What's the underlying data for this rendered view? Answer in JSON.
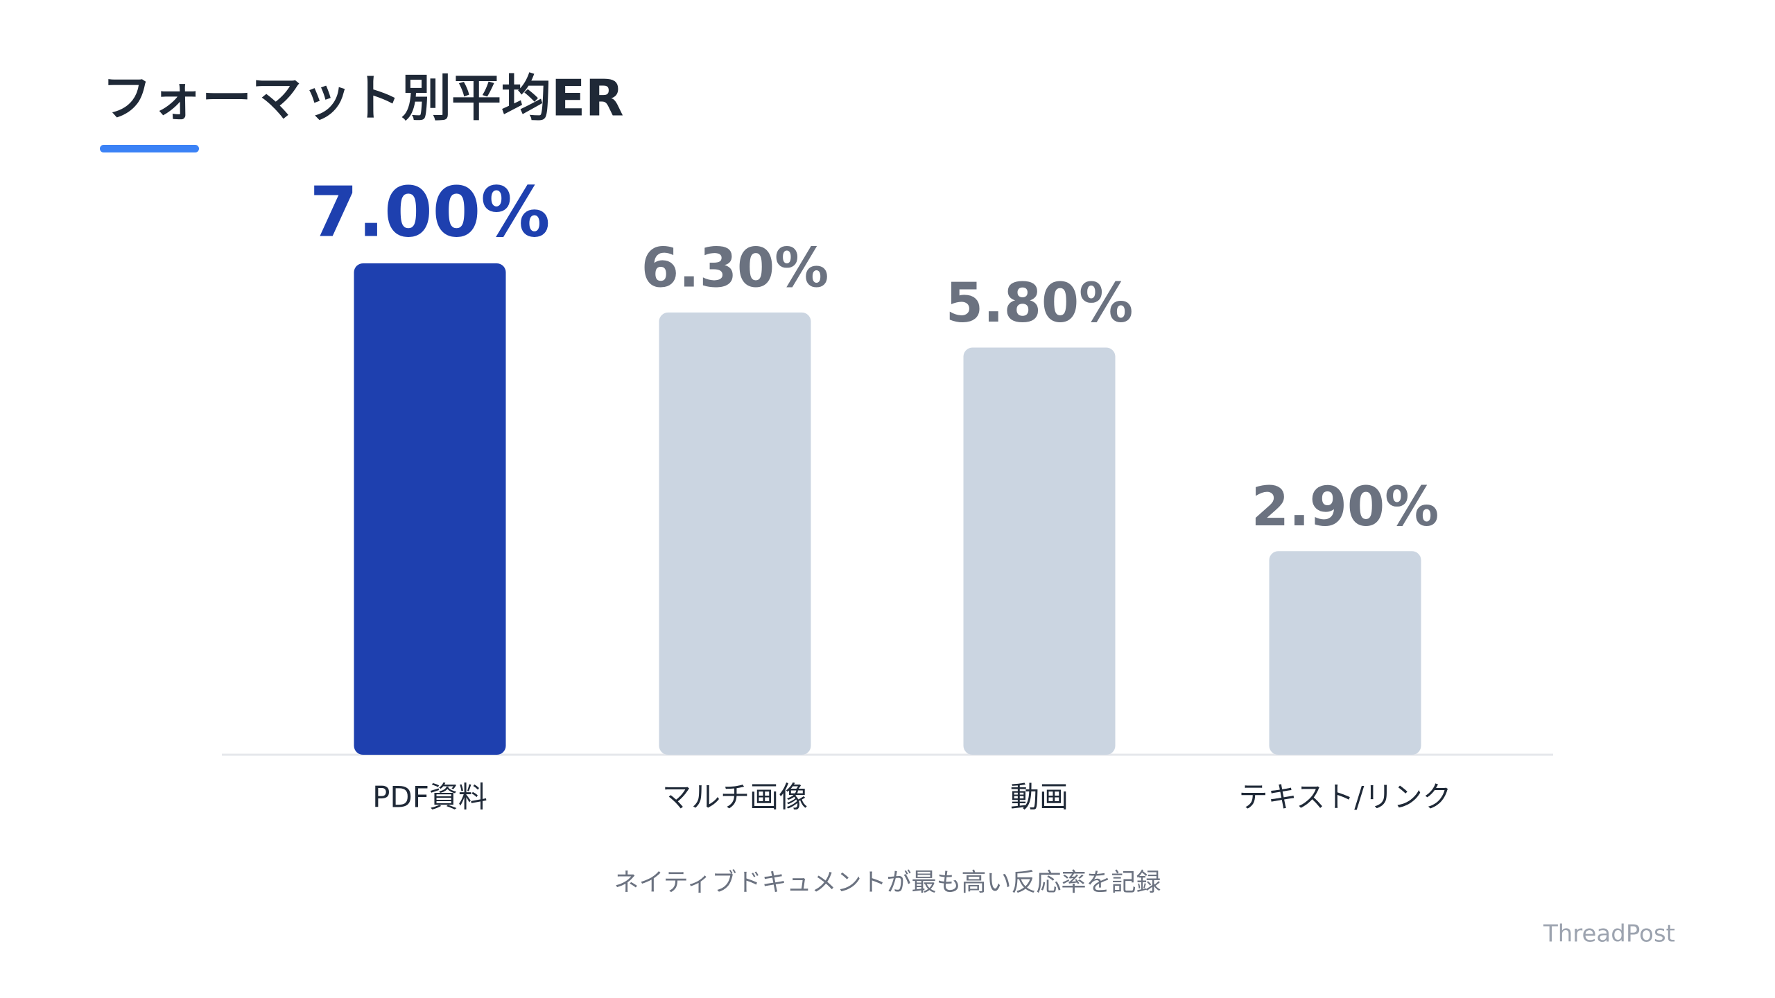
{
  "chart_data": {
    "type": "bar",
    "title": "フォーマット別平均ER",
    "categories": [
      "PDF資料",
      "マルチ画像",
      "動画",
      "テキスト/リンク"
    ],
    "values": [
      7.0,
      6.3,
      5.8,
      2.9
    ],
    "value_labels": [
      "7.00%",
      "6.30%",
      "5.80%",
      "2.90%"
    ],
    "colors": [
      "#1e40af",
      "#cbd5e1",
      "#cbd5e1",
      "#cbd5e1"
    ],
    "label_colors": [
      "#1e40af",
      "#6b7280",
      "#6b7280",
      "#6b7280"
    ],
    "highlight": 0,
    "caption": "ネイティブドキュメントが最も高い反応率を記録",
    "footer": "ThreadPost"
  }
}
